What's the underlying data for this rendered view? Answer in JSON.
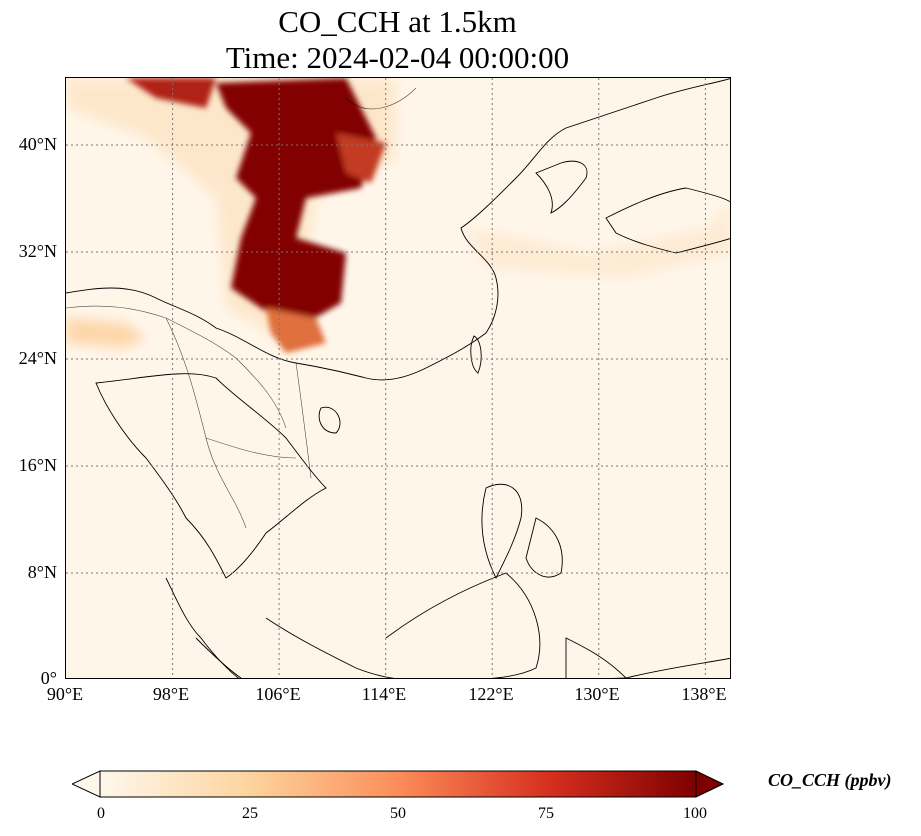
{
  "title_line1": "CO_CCH at 1.5km",
  "title_line2": "Time: 2024-02-04 00:00:00",
  "map": {
    "lat_ticks": [
      "40°N",
      "32°N",
      "24°N",
      "16°N",
      "8°N",
      "0°"
    ],
    "lon_ticks": [
      "90°E",
      "98°E",
      "106°E",
      "114°E",
      "122°E",
      "130°E",
      "138°E"
    ],
    "lon_range": [
      90,
      140
    ],
    "lat_range": [
      0,
      45
    ],
    "grid": "dotted",
    "field_colormap": "OrRd"
  },
  "colorbar": {
    "label": "CO_CCH (ppbv)",
    "ticks": [
      "0",
      "25",
      "50",
      "75",
      "100"
    ],
    "range": [
      0,
      100
    ],
    "extend": "both",
    "colors": [
      "#fff7ec",
      "#fdd49e",
      "#fc8d59",
      "#d7301f",
      "#7f0000"
    ]
  }
}
